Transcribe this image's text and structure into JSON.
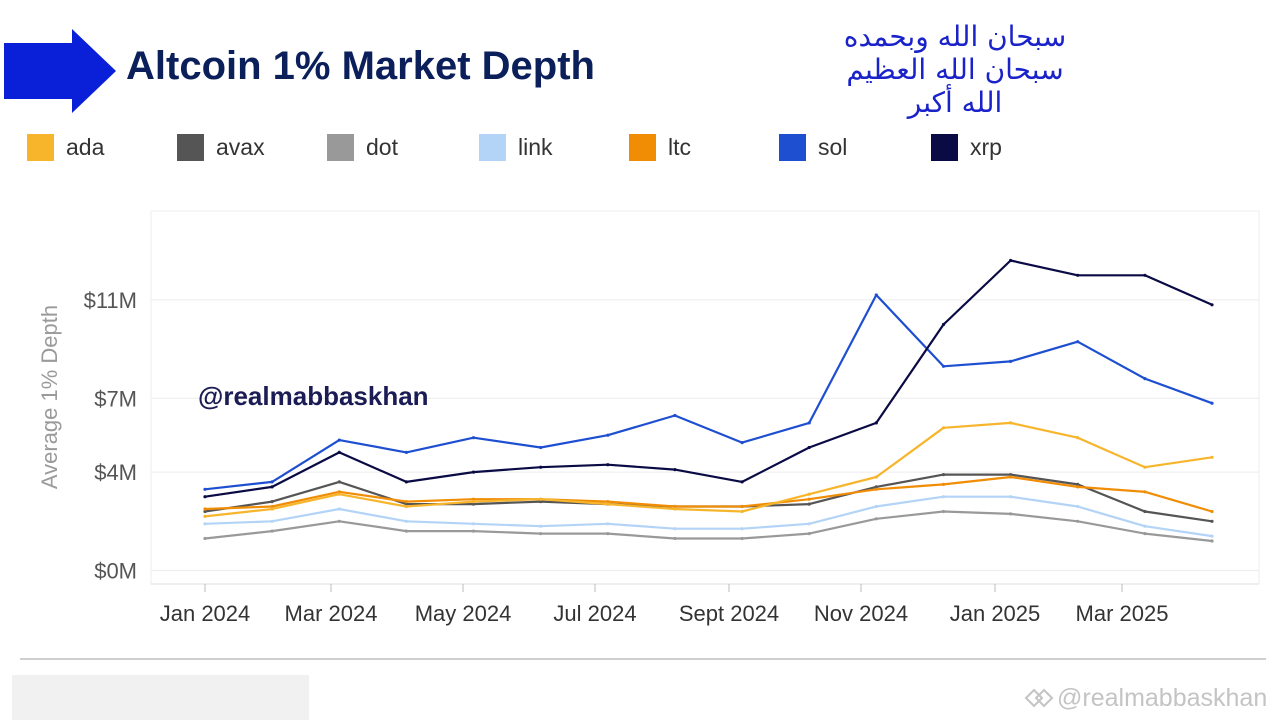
{
  "header": {
    "title": "Altcoin 1% Market Depth",
    "arabic_lines": [
      "سبحان الله وبحمده",
      "سبحان الله العظيم",
      "الله أكبر"
    ],
    "title_color": "#0b1f5b",
    "arrow_color": "#0a1fd8",
    "arabic_color": "#1a22c9"
  },
  "watermark": {
    "text": "@realmabbaskhan"
  },
  "footer_watermark": {
    "text": "@realmabbaskhan",
    "icon": "interlocking-diamonds-icon"
  },
  "chart_data": {
    "type": "line",
    "ylabel": "Average 1% Depth",
    "xlabel": "",
    "y_ticks": [
      {
        "value": 0,
        "label": "$0M"
      },
      {
        "value": 4,
        "label": "$4M"
      },
      {
        "value": 7,
        "label": "$7M"
      },
      {
        "value": 11,
        "label": "$11M"
      }
    ],
    "x_ticks": [
      "Jan 2024",
      "Mar 2024",
      "May 2024",
      "Jul 2024",
      "Sept 2024",
      "Nov 2024",
      "Jan 2025",
      "Mar 2025"
    ],
    "x": [
      "2024-01",
      "2024-02",
      "2024-03",
      "2024-04",
      "2024-05",
      "2024-06",
      "2024-07",
      "2024-08",
      "2024-09",
      "2024-10",
      "2024-11",
      "2024-12",
      "2025-01",
      "2025-02",
      "2025-03",
      "2025-04"
    ],
    "grid": true,
    "legend_position": "top",
    "series": [
      {
        "name": "ada",
        "color": "#f7b52c",
        "values": [
          2.2,
          2.5,
          3.1,
          2.6,
          2.8,
          2.9,
          2.7,
          2.5,
          2.4,
          3.1,
          3.8,
          5.8,
          6.0,
          5.4,
          4.2,
          4.6
        ]
      },
      {
        "name": "avax",
        "color": "#555555",
        "values": [
          2.4,
          2.8,
          3.6,
          2.7,
          2.7,
          2.8,
          2.7,
          2.6,
          2.6,
          2.7,
          3.4,
          3.9,
          3.9,
          3.5,
          2.4,
          2.0
        ]
      },
      {
        "name": "dot",
        "color": "#999999",
        "values": [
          1.3,
          1.6,
          2.0,
          1.6,
          1.6,
          1.5,
          1.5,
          1.3,
          1.3,
          1.5,
          2.1,
          2.4,
          2.3,
          2.0,
          1.5,
          1.2
        ]
      },
      {
        "name": "link",
        "color": "#b3d4f7",
        "values": [
          1.9,
          2.0,
          2.5,
          2.0,
          1.9,
          1.8,
          1.9,
          1.7,
          1.7,
          1.9,
          2.6,
          3.0,
          3.0,
          2.6,
          1.8,
          1.4
        ]
      },
      {
        "name": "ltc",
        "color": "#f18d05",
        "values": [
          2.5,
          2.6,
          3.2,
          2.8,
          2.9,
          2.9,
          2.8,
          2.6,
          2.6,
          2.9,
          3.3,
          3.5,
          3.8,
          3.4,
          3.2,
          2.4
        ]
      },
      {
        "name": "sol",
        "color": "#1f4fd1",
        "values": [
          3.3,
          3.6,
          5.3,
          4.8,
          5.4,
          5.0,
          5.5,
          6.3,
          5.2,
          6.0,
          11.2,
          8.3,
          8.5,
          9.3,
          7.8,
          6.8
        ]
      },
      {
        "name": "xrp",
        "color": "#0a0a44",
        "values": [
          3.0,
          3.4,
          4.8,
          3.6,
          4.0,
          4.2,
          4.3,
          4.1,
          3.6,
          5.0,
          6.0,
          10.0,
          12.6,
          12.0,
          12.0,
          10.8
        ]
      }
    ]
  }
}
